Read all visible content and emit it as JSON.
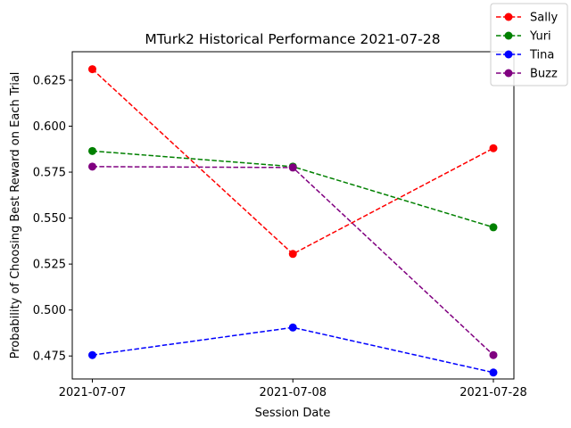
{
  "chart_data": {
    "type": "line",
    "title": "MTurk2 Historical Performance 2021-07-28",
    "xlabel": "Session Date",
    "ylabel": "Probability of Choosing Best Reward on Each Trial",
    "categories": [
      "2021-07-07",
      "2021-07-08",
      "2021-07-28"
    ],
    "ylim": [
      0.4625,
      0.6405
    ],
    "yticks": [
      "0.475",
      "0.500",
      "0.525",
      "0.550",
      "0.575",
      "0.600",
      "0.625"
    ],
    "ytick_values": [
      0.475,
      0.5,
      0.525,
      0.55,
      0.575,
      0.6,
      0.625
    ],
    "grid": false,
    "legend_position": "top-right",
    "line_style": "dashed",
    "marker": "circle",
    "series": [
      {
        "name": "Sally",
        "color": "#ff0000",
        "values": [
          0.631,
          0.5305,
          0.588
        ]
      },
      {
        "name": "Yuri",
        "color": "#008000",
        "values": [
          0.5865,
          0.578,
          0.545
        ]
      },
      {
        "name": "Tina",
        "color": "#0000ff",
        "values": [
          0.4755,
          0.4905,
          0.466
        ]
      },
      {
        "name": "Buzz",
        "color": "#800080",
        "values": [
          0.578,
          0.5775,
          0.4755
        ]
      }
    ]
  }
}
